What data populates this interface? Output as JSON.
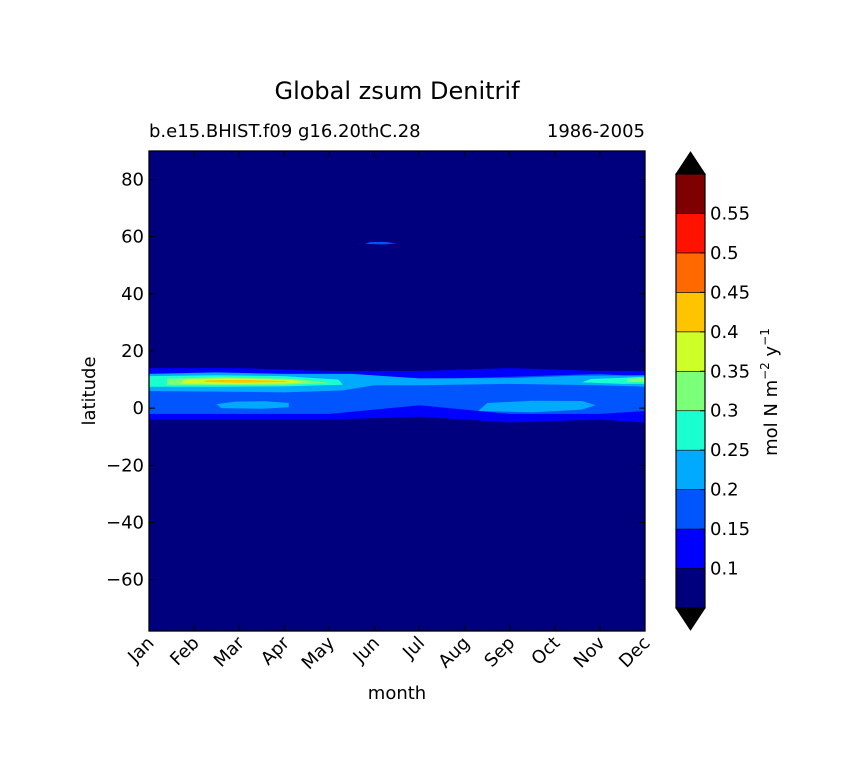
{
  "chart_data": {
    "type": "heatmap",
    "subtype": "filled-contour",
    "title": "Global zsum Denitrif",
    "subtitle_left": "b.e15.BHIST.f09 g16.20thC.28",
    "subtitle_right": "1986-2005",
    "xlabel": "month",
    "ylabel": "latitude",
    "x_ticks": [
      "Jan",
      "Feb",
      "Mar",
      "Apr",
      "May",
      "Jun",
      "Jul",
      "Aug",
      "Sep",
      "Oct",
      "Nov",
      "Dec"
    ],
    "xlim": [
      1,
      12
    ],
    "y_ticks": [
      -60,
      -40,
      -20,
      0,
      20,
      40,
      60,
      80
    ],
    "ylim": [
      -78,
      90
    ],
    "colorbar": {
      "label_base": "mol N m",
      "label_exp1": "−2",
      "label_unit2": " y",
      "label_exp2": "−1",
      "levels": [
        0.05,
        0.1,
        0.15,
        0.2,
        0.25,
        0.3,
        0.35,
        0.4,
        0.45,
        0.5,
        0.55,
        0.6
      ],
      "tick_labels": [
        "0.1",
        "0.15",
        "0.2",
        "0.25",
        "0.3",
        "0.35",
        "0.4",
        "0.45",
        "0.5",
        "0.55"
      ],
      "colors": [
        "#00007f",
        "#0000ff",
        "#0055ff",
        "#00aaff",
        "#19ffcf",
        "#7cff79",
        "#cfff28",
        "#ffc400",
        "#ff6900",
        "#ff1300",
        "#7f0000"
      ],
      "extend_low_color": "#000000",
      "extend_high_color": "#000000"
    },
    "regions": [
      {
        "level": 1,
        "points": [
          [
            1,
            -4
          ],
          [
            3,
            -4
          ],
          [
            5,
            -4
          ],
          [
            7,
            -3
          ],
          [
            9,
            -5
          ],
          [
            11,
            -4
          ],
          [
            12,
            -5
          ],
          [
            12,
            13
          ],
          [
            11,
            13
          ],
          [
            9,
            14
          ],
          [
            7,
            13
          ],
          [
            5,
            13
          ],
          [
            3,
            14
          ],
          [
            1,
            14
          ]
        ]
      },
      {
        "level": 2,
        "points": [
          [
            1,
            -2
          ],
          [
            3,
            -2
          ],
          [
            5,
            -2
          ],
          [
            7,
            1
          ],
          [
            9,
            -2
          ],
          [
            11,
            -2
          ],
          [
            12,
            -1
          ],
          [
            12,
            11
          ],
          [
            11,
            12
          ],
          [
            9,
            11
          ],
          [
            7,
            10
          ],
          [
            5,
            11
          ],
          [
            3,
            12
          ],
          [
            1,
            12
          ]
        ]
      },
      {
        "level": 3,
        "points": [
          [
            2.6,
            0
          ],
          [
            3.5,
            -0.2
          ],
          [
            4.1,
            0.3
          ],
          [
            4.1,
            1.8
          ],
          [
            3.6,
            2.4
          ],
          [
            2.9,
            2.3
          ],
          [
            2.5,
            1.4
          ]
        ]
      },
      {
        "level": 3,
        "points": [
          [
            8.3,
            -1
          ],
          [
            9.5,
            -1.5
          ],
          [
            10.6,
            -0.5
          ],
          [
            10.9,
            1
          ],
          [
            10.6,
            2.5
          ],
          [
            9.5,
            2.6
          ],
          [
            8.5,
            1.8
          ]
        ]
      },
      {
        "level": 3,
        "points": [
          [
            1,
            6
          ],
          [
            2.5,
            5.8
          ],
          [
            4,
            5.5
          ],
          [
            5.3,
            6.2
          ],
          [
            6,
            8
          ],
          [
            7,
            8
          ],
          [
            9,
            8.5
          ],
          [
            11,
            8
          ],
          [
            12,
            7.5
          ],
          [
            12,
            11.5
          ],
          [
            10.5,
            11.4
          ],
          [
            9,
            10.5
          ],
          [
            7,
            10.4
          ],
          [
            5.5,
            12
          ],
          [
            4,
            12
          ],
          [
            2.5,
            12.5
          ],
          [
            1,
            12
          ]
        ]
      },
      {
        "level": 4,
        "points": [
          [
            1,
            7.5
          ],
          [
            2.5,
            7.5
          ],
          [
            4,
            7.6
          ],
          [
            5.3,
            8.2
          ],
          [
            5.2,
            10
          ],
          [
            4,
            11.2
          ],
          [
            2.5,
            11.5
          ],
          [
            1,
            11.2
          ]
        ]
      },
      {
        "level": 4,
        "points": [
          [
            10.6,
            9
          ],
          [
            11.5,
            8.5
          ],
          [
            12,
            8.5
          ],
          [
            12,
            11
          ],
          [
            11.5,
            10.6
          ],
          [
            10.8,
            10.2
          ]
        ]
      },
      {
        "level": 5,
        "points": [
          [
            1.4,
            8.2
          ],
          [
            2.6,
            8.1
          ],
          [
            4,
            8.2
          ],
          [
            5,
            8.8
          ],
          [
            4.3,
            10.2
          ],
          [
            2.6,
            10.8
          ],
          [
            1.4,
            10.3
          ]
        ]
      },
      {
        "level": 5,
        "points": [
          [
            11.6,
            9.2
          ],
          [
            12,
            9
          ],
          [
            12,
            10.5
          ],
          [
            11.6,
            10.3
          ]
        ]
      },
      {
        "level": 6,
        "points": [
          [
            1.7,
            8.6
          ],
          [
            2.8,
            8.5
          ],
          [
            4.2,
            8.7
          ],
          [
            4.5,
            9.3
          ],
          [
            4.1,
            10
          ],
          [
            2.8,
            10.4
          ],
          [
            1.8,
            10.1
          ]
        ]
      },
      {
        "level": 7,
        "points": [
          [
            2.2,
            9.2
          ],
          [
            3,
            8.9
          ],
          [
            4,
            9.1
          ],
          [
            4.1,
            9.5
          ],
          [
            3.1,
            9.9
          ],
          [
            2.3,
            9.8
          ]
        ]
      },
      {
        "level": 2,
        "points": [
          [
            5.8,
            57.5
          ],
          [
            6.2,
            57.3
          ],
          [
            6.5,
            57.7
          ],
          [
            6.2,
            58.2
          ],
          [
            5.9,
            58.1
          ]
        ]
      }
    ]
  }
}
